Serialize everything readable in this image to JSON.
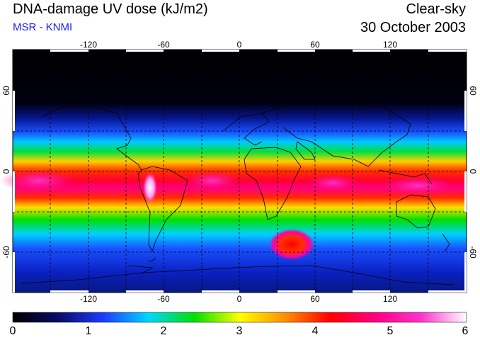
{
  "header": {
    "title": "DNA-damage UV dose (kJ/m2)",
    "subtitle": "MSR - KNMI",
    "condition": "Clear-sky",
    "date": "30 October 2003"
  },
  "map": {
    "lon_ticks": [
      "-120",
      "-60",
      "0",
      "60",
      "120"
    ],
    "lat_ticks": [
      "60",
      "0",
      "-60"
    ]
  },
  "colorbar": {
    "labels": [
      "0",
      "1",
      "2",
      "3",
      "4",
      "5",
      "6"
    ],
    "min": 0,
    "max": 6,
    "stops": [
      "#000000",
      "#0a0a66",
      "#1a3cff",
      "#00d8ff",
      "#00e000",
      "#ffff00",
      "#ff9000",
      "#ff0000",
      "#ff0080",
      "#ff33cc",
      "#ffffff"
    ]
  }
}
